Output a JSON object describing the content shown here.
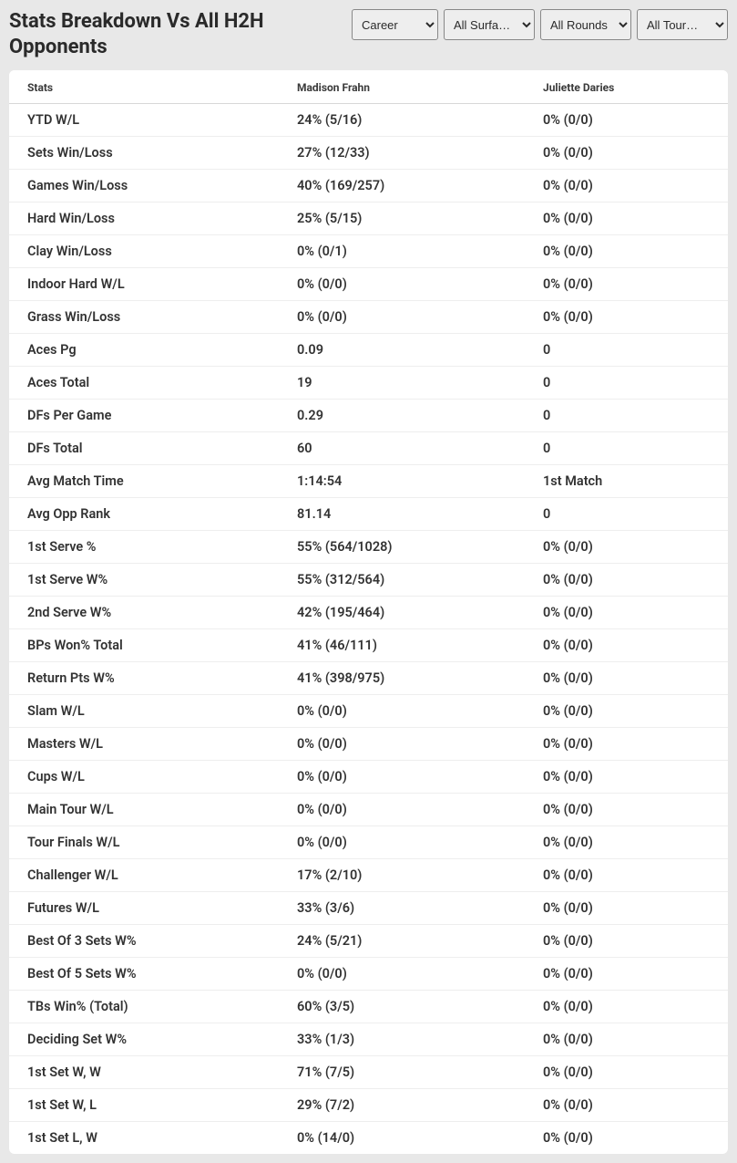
{
  "title": "Stats Breakdown Vs All H2H Opponents",
  "filters": {
    "career": "Career",
    "surface": "All Surfa…",
    "round": "All Rounds",
    "tour": "All Tour…"
  },
  "table": {
    "columns": [
      "Stats",
      "Madison Frahn",
      "Juliette Daries"
    ],
    "rows": [
      [
        "YTD W/L",
        "24% (5/16)",
        "0% (0/0)"
      ],
      [
        "Sets Win/Loss",
        "27% (12/33)",
        "0% (0/0)"
      ],
      [
        "Games Win/Loss",
        "40% (169/257)",
        "0% (0/0)"
      ],
      [
        "Hard Win/Loss",
        "25% (5/15)",
        "0% (0/0)"
      ],
      [
        "Clay Win/Loss",
        "0% (0/1)",
        "0% (0/0)"
      ],
      [
        "Indoor Hard W/L",
        "0% (0/0)",
        "0% (0/0)"
      ],
      [
        "Grass Win/Loss",
        "0% (0/0)",
        "0% (0/0)"
      ],
      [
        "Aces Pg",
        "0.09",
        "0"
      ],
      [
        "Aces Total",
        "19",
        "0"
      ],
      [
        "DFs Per Game",
        "0.29",
        "0"
      ],
      [
        "DFs Total",
        "60",
        "0"
      ],
      [
        "Avg Match Time",
        "1:14:54",
        "1st Match"
      ],
      [
        "Avg Opp Rank",
        "81.14",
        "0"
      ],
      [
        "1st Serve %",
        "55% (564/1028)",
        "0% (0/0)"
      ],
      [
        "1st Serve W%",
        "55% (312/564)",
        "0% (0/0)"
      ],
      [
        "2nd Serve W%",
        "42% (195/464)",
        "0% (0/0)"
      ],
      [
        "BPs Won% Total",
        "41% (46/111)",
        "0% (0/0)"
      ],
      [
        "Return Pts W%",
        "41% (398/975)",
        "0% (0/0)"
      ],
      [
        "Slam W/L",
        "0% (0/0)",
        "0% (0/0)"
      ],
      [
        "Masters W/L",
        "0% (0/0)",
        "0% (0/0)"
      ],
      [
        "Cups W/L",
        "0% (0/0)",
        "0% (0/0)"
      ],
      [
        "Main Tour W/L",
        "0% (0/0)",
        "0% (0/0)"
      ],
      [
        "Tour Finals W/L",
        "0% (0/0)",
        "0% (0/0)"
      ],
      [
        "Challenger W/L",
        "17% (2/10)",
        "0% (0/0)"
      ],
      [
        "Futures W/L",
        "33% (3/6)",
        "0% (0/0)"
      ],
      [
        "Best Of 3 Sets W%",
        "24% (5/21)",
        "0% (0/0)"
      ],
      [
        "Best Of 5 Sets W%",
        "0% (0/0)",
        "0% (0/0)"
      ],
      [
        "TBs Win% (Total)",
        "60% (3/5)",
        "0% (0/0)"
      ],
      [
        "Deciding Set W%",
        "33% (1/3)",
        "0% (0/0)"
      ],
      [
        "1st Set W, W",
        "71% (7/5)",
        "0% (0/0)"
      ],
      [
        "1st Set W, L",
        "29% (7/2)",
        "0% (0/0)"
      ],
      [
        "1st Set L, W",
        "0% (14/0)",
        "0% (0/0)"
      ]
    ]
  },
  "colors": {
    "page_bg": "#e8e8e8",
    "panel_bg": "#ffffff",
    "text": "#2a2a2a",
    "row_border": "#eeeeee",
    "header_border": "#d8d8d8",
    "select_border": "#888888",
    "select_bg": "#eeeeee"
  }
}
